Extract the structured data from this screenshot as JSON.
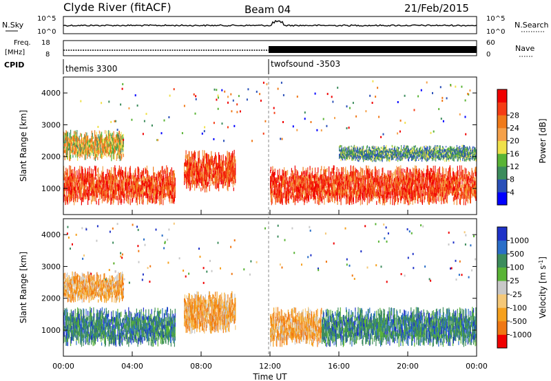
{
  "header": {
    "station": "Clyde River (fitACF)",
    "beam": "Beam 04",
    "date": "21/Feb/2015"
  },
  "top_panels": {
    "nsky_label": "N.Sky",
    "nsearch_label": "N.Search",
    "noise_ticks_left": [
      "10^5",
      "10^0"
    ],
    "noise_ticks_right": [
      "10^5",
      "10^0"
    ],
    "freq_label": "Freq.",
    "freq_unit": "[MHz]",
    "freq_ticks": [
      "18",
      "8"
    ],
    "nave_label": "Nave",
    "nave_ticks": [
      "60",
      "0"
    ],
    "cpid_label": "CPID",
    "cpid_segments": [
      {
        "name": "themis 3300",
        "start_hour": 0
      },
      {
        "name": "twofsound -3503",
        "start_hour": 12
      }
    ]
  },
  "chart_data": [
    {
      "type": "heatmap",
      "name": "Power",
      "xlabel": "",
      "ylabel": "Slant Range [km]",
      "xlim": [
        0,
        24
      ],
      "ylim": [
        180,
        4500
      ],
      "y_ticks": [
        1000,
        2000,
        3000,
        4000
      ],
      "colorbar": {
        "label": "Power [dB]",
        "ticks": [
          4,
          8,
          12,
          16,
          20,
          24,
          28
        ],
        "colors": [
          "#0000ff",
          "#2a50b8",
          "#3c8c5c",
          "#5ab436",
          "#f0e14a",
          "#f5a14a",
          "#f07a1a",
          "#f53c14",
          "#f00000"
        ]
      },
      "echo_regions": [
        {
          "t0": 0.0,
          "t1": 6.5,
          "r0": 400,
          "r1": 1800,
          "level": "high"
        },
        {
          "t0": 0.0,
          "t1": 3.5,
          "r0": 1800,
          "r1": 2900,
          "level": "medium"
        },
        {
          "t0": 7.0,
          "t1": 10.0,
          "r0": 800,
          "r1": 2300,
          "level": "high"
        },
        {
          "t0": 12.0,
          "t1": 24.0,
          "r0": 400,
          "r1": 1800,
          "level": "high"
        },
        {
          "t0": 16.0,
          "t1": 24.0,
          "r0": 1800,
          "r1": 2400,
          "level": "low"
        }
      ]
    },
    {
      "type": "heatmap",
      "name": "Velocity",
      "xlabel": "Time UT",
      "ylabel": "Slant Range [km]",
      "xlim": [
        0,
        24
      ],
      "ylim": [
        180,
        4500
      ],
      "y_ticks": [
        1000,
        2000,
        3000,
        4000
      ],
      "x_ticks": [
        "00:00",
        "04:00",
        "08:00",
        "12:00",
        "16:00",
        "20:00",
        "00:00"
      ],
      "colorbar": {
        "label": "Velocity [m s^-1]",
        "ticks": [
          1000,
          500,
          100,
          25,
          -25,
          -100,
          -500,
          -1000
        ],
        "colors": [
          "#1e32c8",
          "#2a6ec8",
          "#3c8c5c",
          "#5ab436",
          "#c8c8c8",
          "#f5c878",
          "#f5a01e",
          "#f07814",
          "#f00000"
        ]
      },
      "echo_regions": [
        {
          "t0": 0.0,
          "t1": 6.5,
          "r0": 400,
          "r1": 1800,
          "level": "positive"
        },
        {
          "t0": 0.0,
          "t1": 3.5,
          "r0": 1800,
          "r1": 2900,
          "level": "negative"
        },
        {
          "t0": 7.0,
          "t1": 10.0,
          "r0": 800,
          "r1": 2300,
          "level": "negative"
        },
        {
          "t0": 12.0,
          "t1": 15.0,
          "r0": 400,
          "r1": 1800,
          "level": "negative"
        },
        {
          "t0": 15.0,
          "t1": 24.0,
          "r0": 400,
          "r1": 1800,
          "level": "positive"
        }
      ]
    }
  ]
}
